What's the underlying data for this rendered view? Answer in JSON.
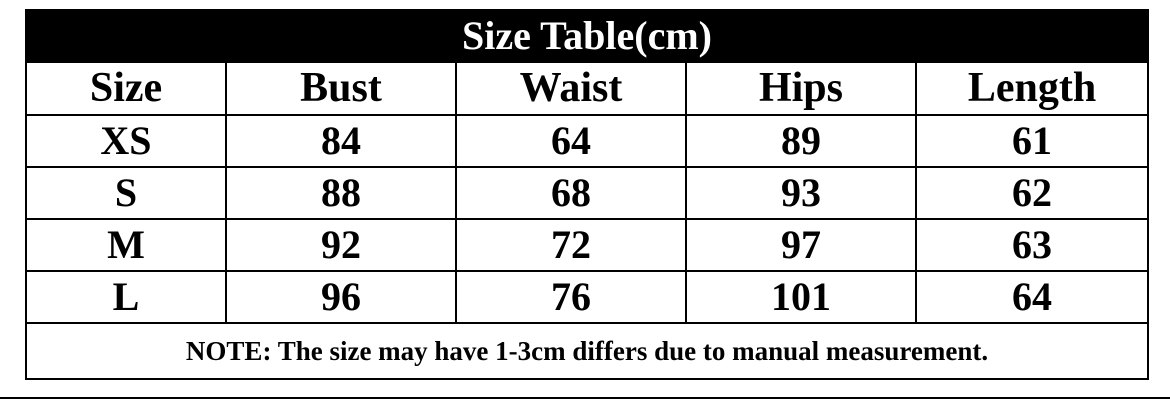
{
  "title": "Size Table(cm)",
  "headers": [
    "Size",
    "Bust",
    "Waist",
    "Hips",
    "Length"
  ],
  "rows": [
    [
      "XS",
      "84",
      "64",
      "89",
      "61"
    ],
    [
      "S",
      "88",
      "68",
      "93",
      "62"
    ],
    [
      "M",
      "92",
      "72",
      "97",
      "63"
    ],
    [
      "L",
      "96",
      "76",
      "101",
      "64"
    ]
  ],
  "note": "NOTE: The size may have 1-3cm differs due to manual measurement."
}
